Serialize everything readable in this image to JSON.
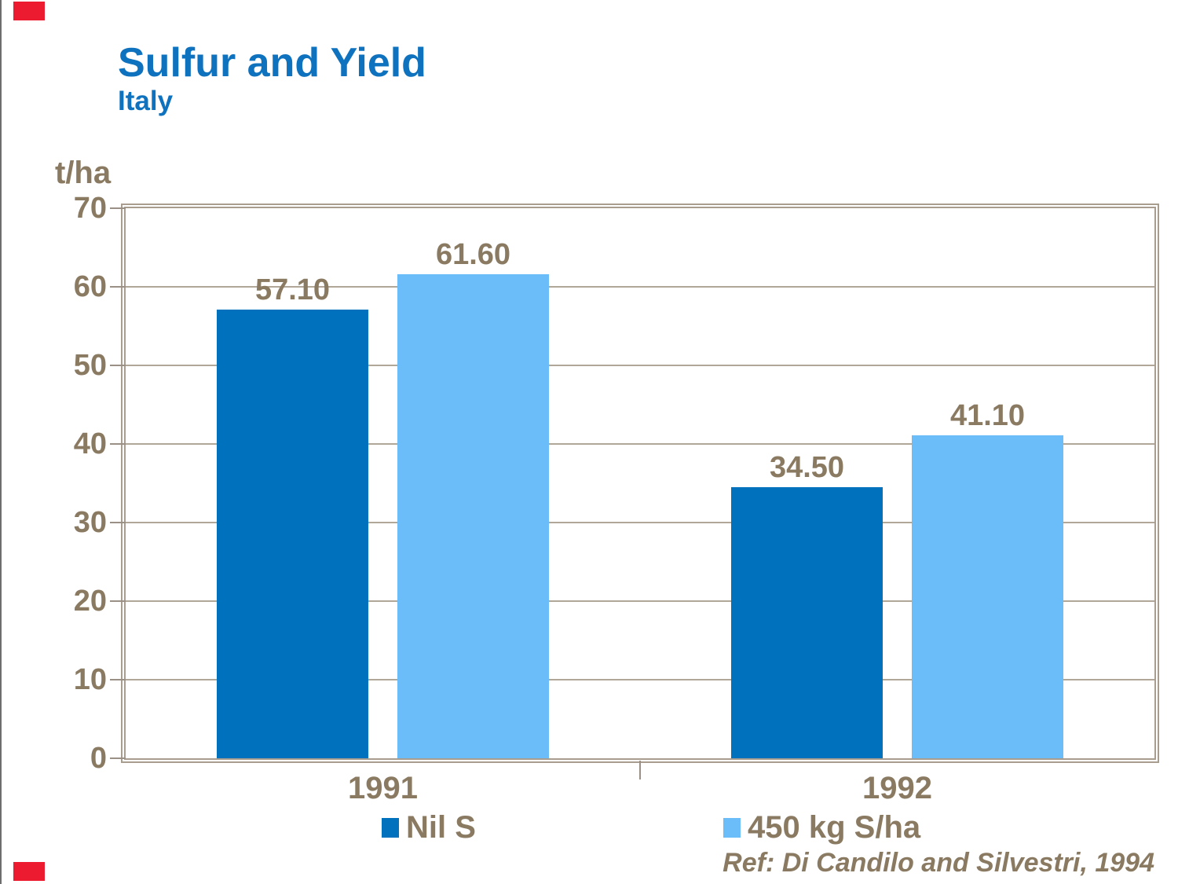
{
  "chart_data": {
    "type": "bar",
    "title": "Sulfur and Yield",
    "subtitle": "Italy",
    "unit_label": "t/ha",
    "categories": [
      "1991",
      "1992"
    ],
    "series": [
      {
        "name": "Nil S",
        "color": "#0071BC",
        "values": [
          57.1,
          34.5
        ],
        "value_labels": [
          "57.10",
          "34.50"
        ]
      },
      {
        "name": "450 kg S/ha",
        "color": "#6ABDF8",
        "values": [
          61.6,
          41.1
        ],
        "value_labels": [
          "61.60",
          "41.10"
        ]
      }
    ],
    "ylim": [
      0,
      70
    ],
    "yticks": [
      0,
      10,
      20,
      30,
      40,
      50,
      60,
      70
    ],
    "grid": true,
    "legend_position": "bottom"
  },
  "footer": {
    "reference": "Ref: Di Candilo and Silvestri, 1994"
  },
  "colors": {
    "title_blue": "#0F72BE",
    "series_dark_blue": "#0071BC",
    "series_light_blue": "#6ABDF8",
    "axis_text_brown": "#8A7A62",
    "frame_tan": "#A89D8E",
    "gridline_tan": "#B1A799",
    "accent_red": "#ED1B2F",
    "background": "#FFFFFF"
  }
}
